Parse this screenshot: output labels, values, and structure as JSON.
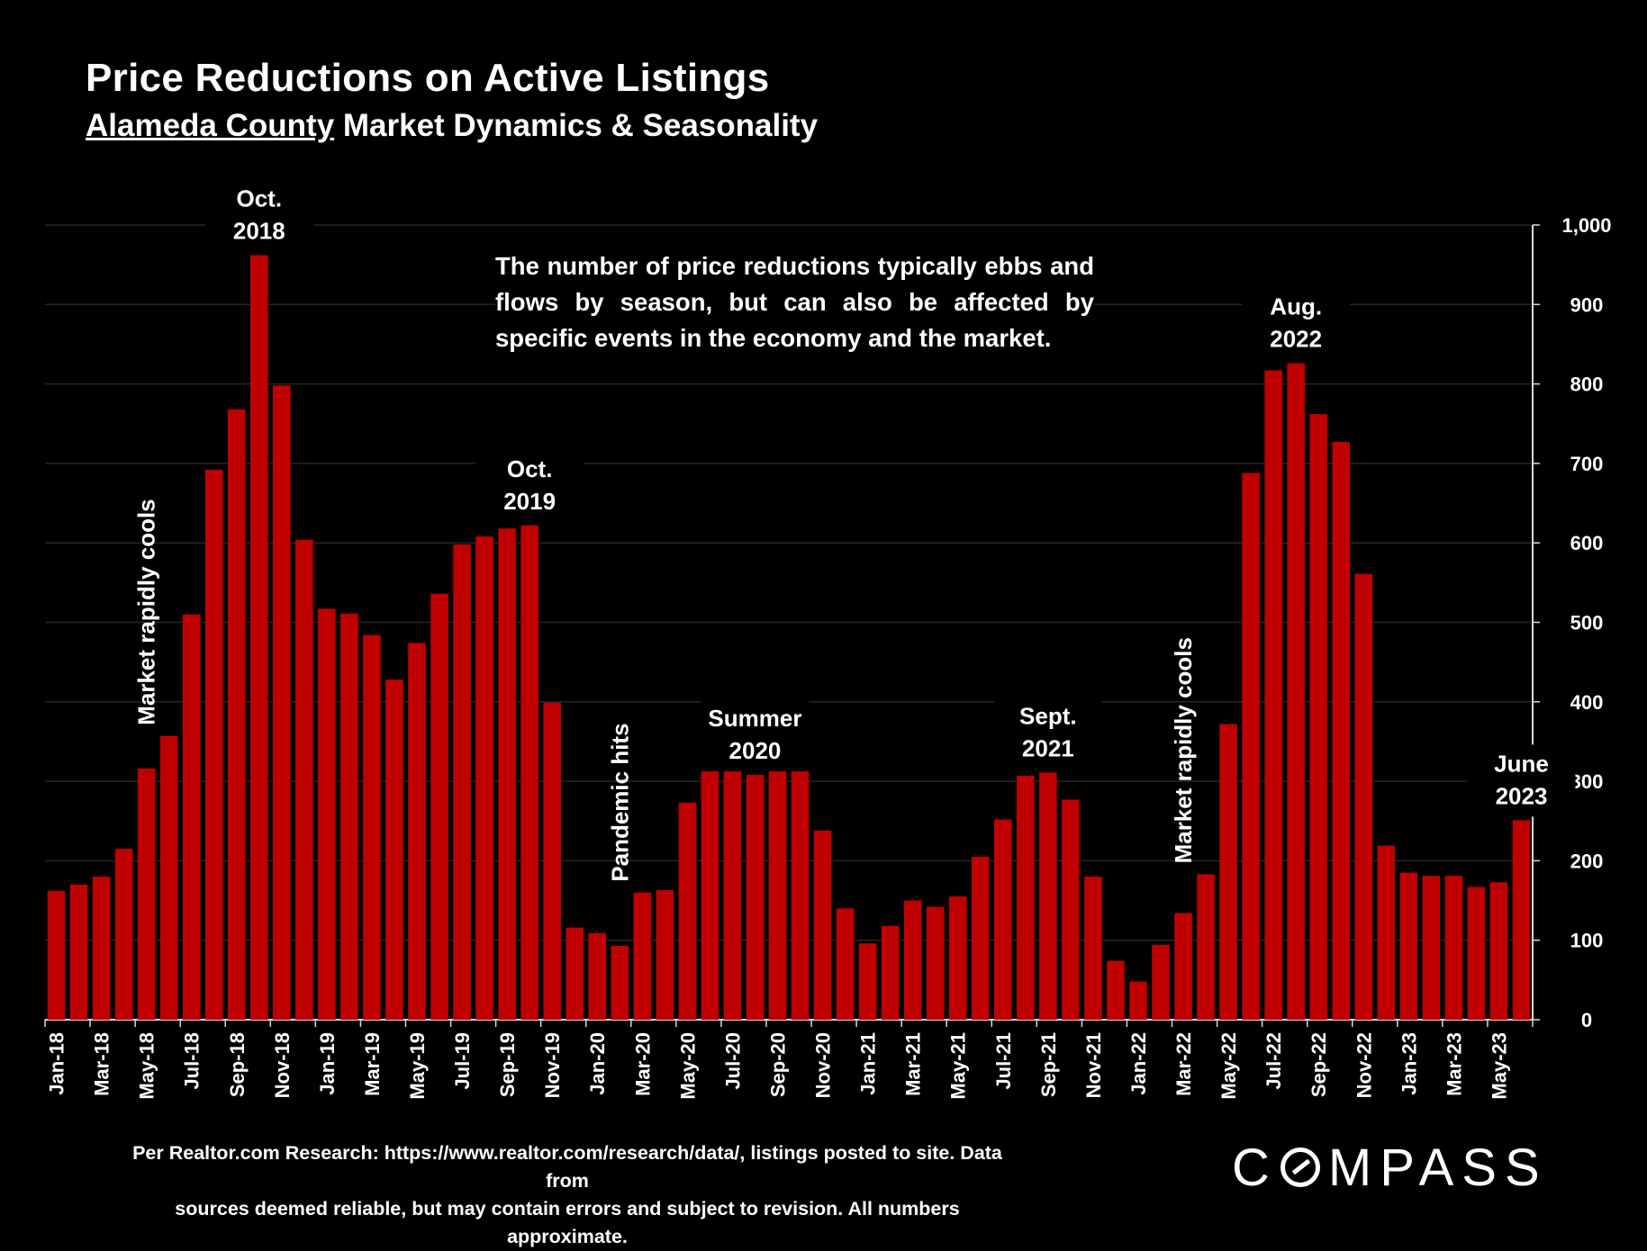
{
  "header": {
    "title": "Price Reductions on Active Listings",
    "subtitle_county": "Alameda County",
    "subtitle_rest": " Market Dynamics & Seasonality"
  },
  "note": "The number of price reductions typically ebbs and flows by season, but can also be affected by specific events in the economy and the market.",
  "source": {
    "line1": "Per Realtor.com Research:  https://www.realtor.com/research/data/, listings posted to site. Data from",
    "line2": "sources deemed reliable, but may contain errors and subject to revision. All numbers approximate."
  },
  "logo": {
    "before": "C",
    "after": "MPASS"
  },
  "colors": {
    "bar": "#c00000",
    "background": "#000000",
    "gridline": "#262626",
    "text": "#ffffff"
  },
  "chart_data": {
    "type": "bar",
    "categories": [
      "Jan-18",
      "Feb-18",
      "Mar-18",
      "Apr-18",
      "May-18",
      "Jun-18",
      "Jul-18",
      "Aug-18",
      "Sep-18",
      "Oct-18",
      "Nov-18",
      "Dec-18",
      "Jan-19",
      "Feb-19",
      "Mar-19",
      "Apr-19",
      "May-19",
      "Jun-19",
      "Jul-19",
      "Aug-19",
      "Sep-19",
      "Oct-19",
      "Nov-19",
      "Dec-19",
      "Jan-20",
      "Feb-20",
      "Mar-20",
      "Apr-20",
      "May-20",
      "Jun-20",
      "Jul-20",
      "Aug-20",
      "Sep-20",
      "Oct-20",
      "Nov-20",
      "Dec-20",
      "Jan-21",
      "Feb-21",
      "Mar-21",
      "Apr-21",
      "May-21",
      "Jun-21",
      "Jul-21",
      "Aug-21",
      "Sep-21",
      "Oct-21",
      "Nov-21",
      "Dec-21",
      "Jan-22",
      "Feb-22",
      "Mar-22",
      "Apr-22",
      "May-22",
      "Jun-22",
      "Jul-22",
      "Aug-22",
      "Sep-22",
      "Oct-22",
      "Nov-22",
      "Dec-22",
      "Jan-23",
      "Feb-23",
      "Mar-23",
      "Apr-23",
      "May-23",
      "Jun-23"
    ],
    "tick_labels": [
      "Jan-18",
      "Mar-18",
      "May-18",
      "Jul-18",
      "Sep-18",
      "Nov-18",
      "Jan-19",
      "Mar-19",
      "May-19",
      "Jul-19",
      "Sep-19",
      "Nov-19",
      "Jan-20",
      "Mar-20",
      "May-20",
      "Jul-20",
      "Sep-20",
      "Nov-20",
      "Jan-21",
      "Mar-21",
      "May-21",
      "Jul-21",
      "Sep-21",
      "Nov-21",
      "Jan-22",
      "Mar-22",
      "May-22",
      "Jul-22",
      "Sep-22",
      "Nov-22",
      "Jan-23",
      "Mar-23",
      "May-23"
    ],
    "values": [
      162,
      170,
      180,
      215,
      316,
      357,
      510,
      692,
      768,
      962,
      798,
      604,
      517,
      511,
      484,
      428,
      474,
      536,
      598,
      608,
      618,
      622,
      399,
      116,
      109,
      93,
      160,
      163,
      273,
      361,
      336,
      308,
      327,
      344,
      238,
      140,
      96,
      118,
      150,
      142,
      155,
      205,
      252,
      307,
      311,
      277,
      180,
      74,
      48,
      94,
      134,
      183,
      372,
      688,
      817,
      826,
      762,
      727,
      561,
      219,
      185,
      181,
      181,
      167,
      173,
      251
    ],
    "ylim": [
      0,
      1000
    ],
    "yticks": [
      0,
      100,
      200,
      300,
      400,
      500,
      600,
      700,
      800,
      900,
      1000
    ],
    "ytick_labels": [
      "0",
      "100",
      "200",
      "300",
      "400",
      "500",
      "600",
      "700",
      "800",
      "900",
      "1,000"
    ],
    "y_axis_side": "right",
    "grid": true,
    "annotations": [
      {
        "text": [
          "Oct.",
          "2018"
        ],
        "index": 9
      },
      {
        "text": [
          "Oct.",
          "2019"
        ],
        "index": 21
      },
      {
        "text": [
          "Summer",
          "2020"
        ],
        "index": 31
      },
      {
        "text": [
          "Sept.",
          "2021"
        ],
        "index": 44
      },
      {
        "text": [
          "Aug.",
          "2022"
        ],
        "index": 55
      },
      {
        "text": [
          "June",
          "2023"
        ],
        "index": 65
      }
    ],
    "vertical_annotations": [
      {
        "text": "Market rapidly cools",
        "index": 5
      },
      {
        "text": "Pandemic hits",
        "index": 26
      },
      {
        "text": "Market rapidly cools",
        "index": 51
      }
    ]
  }
}
